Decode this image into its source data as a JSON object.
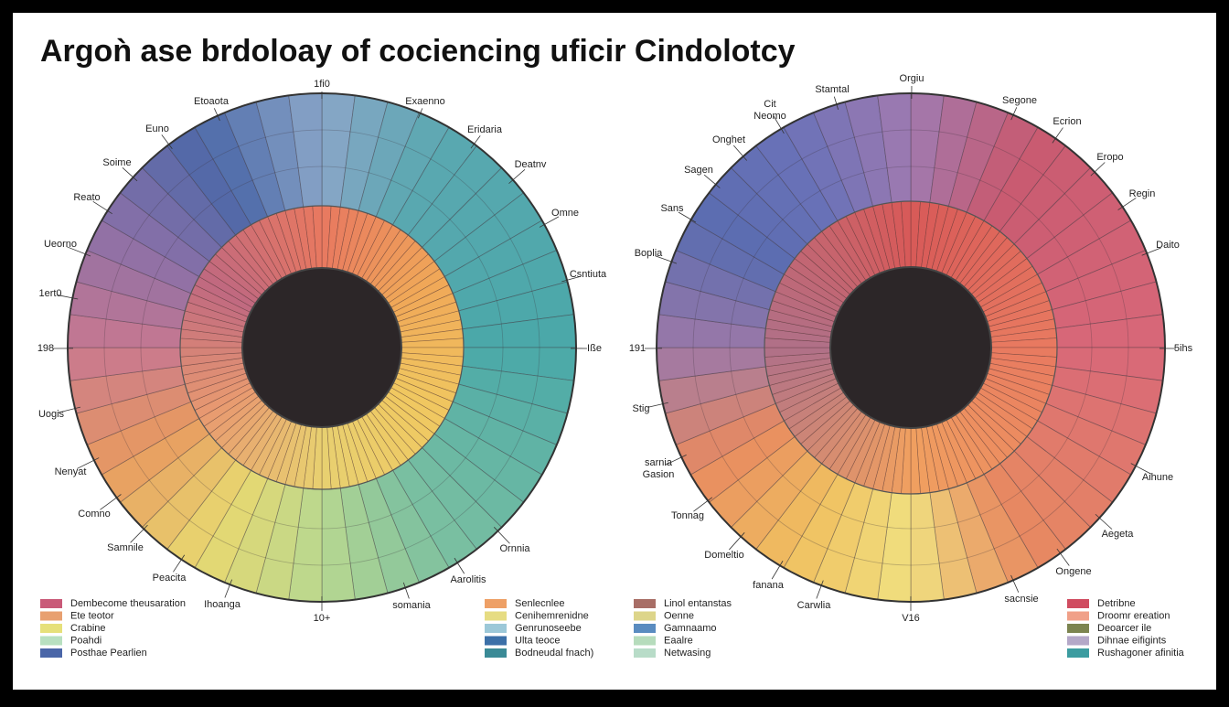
{
  "title": "Argoǹ ase brdoloay of cociencing uficir Cindolotcy",
  "wheels": [
    {
      "labels": [
        "1fi0",
        "Exaenno",
        "Eridaria",
        "Deatnv",
        "Omne",
        "Csntiuta",
        "Iße",
        "Ornnia",
        "Aarolitis",
        "somania",
        "10+",
        "Ihoanga",
        "Peacita",
        "Samnile",
        "Comno",
        "Nenyat",
        "Uogis",
        "198",
        "1ert0",
        "Ueorno",
        "Reato",
        "Soime",
        "Euno",
        "Etoaota"
      ]
    },
    {
      "labels": [
        "Orgiu",
        "Segone",
        "Ecrion",
        "Eropo",
        "Regin",
        "Daito",
        "5ihs",
        "Aihune",
        "Aegeta",
        "Ongene",
        "sacnsie",
        "V16",
        "Carwlia",
        "fanana",
        "Domeltio",
        "Tonnag",
        "sarnia Gasion",
        "Stig",
        "191",
        "Boplia",
        "Sans",
        "Sagen",
        "Onghet",
        "Cit Neomo",
        "Stamtal"
      ]
    }
  ],
  "legends": [
    {
      "items": [
        {
          "label": "Dembecome theusaration",
          "color": "#c95a78"
        },
        {
          "label": "Ete teotor",
          "color": "#e8a070"
        },
        {
          "label": "Crabine",
          "color": "#e6e07a"
        },
        {
          "label": "Poahdi",
          "color": "#b8e0c0"
        },
        {
          "label": "Posthae Pearlien",
          "color": "#4a66a8"
        }
      ]
    },
    {
      "items": [
        {
          "label": "Senlecnlee",
          "color": "#eea066"
        },
        {
          "label": "Cenihemrenidne",
          "color": "#e6dc82"
        },
        {
          "label": "Genrunoseebe",
          "color": "#9cc8d8"
        },
        {
          "label": "Ulta teoce",
          "color": "#3c70a8"
        },
        {
          "label": "Bodneudal fnach)",
          "color": "#3a8a96"
        }
      ]
    },
    {
      "items": [
        {
          "label": "Linol entanstas",
          "color": "#a86e66"
        },
        {
          "label": "Oenne",
          "color": "#ddd58a"
        },
        {
          "label": "Gamnaamo",
          "color": "#5a8cc0"
        },
        {
          "label": "Eaalre",
          "color": "#b6dcbc"
        },
        {
          "label": "Netwasing",
          "color": "#b8dcc8"
        }
      ]
    },
    {
      "items": [
        {
          "label": "Detribne",
          "color": "#d04c60"
        },
        {
          "label": "Droomr ereation",
          "color": "#f0a088"
        },
        {
          "label": "Deoarcer ile",
          "color": "#7c8450"
        },
        {
          "label": "Dihnae eifigints",
          "color": "#b4a8c8"
        },
        {
          "label": "Rushagoner afinitia",
          "color": "#3c9ca0"
        }
      ]
    }
  ]
}
